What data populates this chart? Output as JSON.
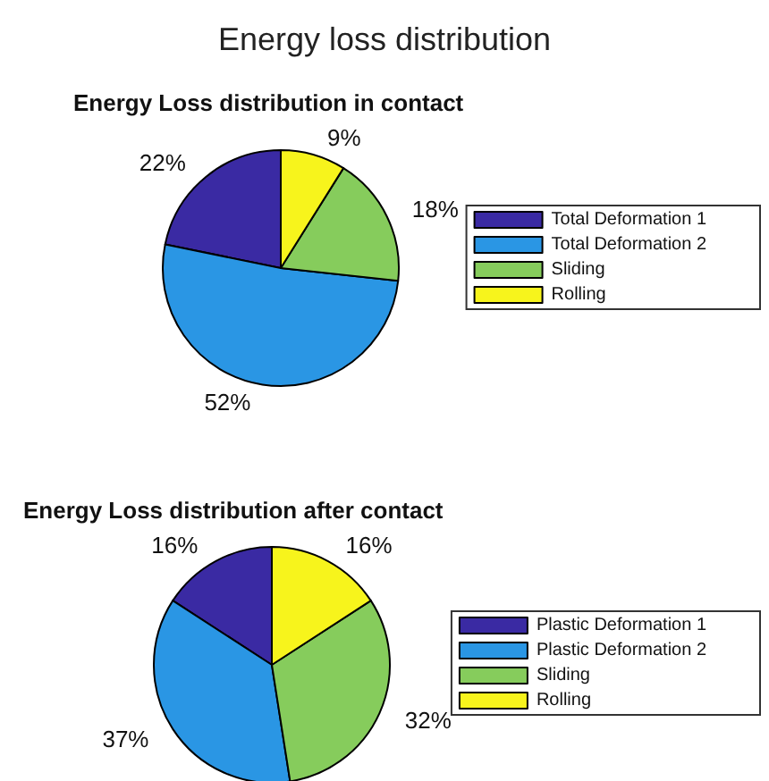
{
  "chart_data": [
    {
      "type": "pie",
      "title": "Energy loss distribution",
      "subtitle": "Energy Loss distribution in contact",
      "categories": [
        "Total Deformation 1",
        "Total Deformation 2",
        "Sliding",
        "Rolling"
      ],
      "values": [
        22,
        52,
        18,
        9
      ],
      "value_labels": [
        "22%",
        "52%",
        "18%",
        "9%"
      ],
      "colors": [
        "#3a2aa3",
        "#2a96e4",
        "#86cc5c",
        "#f7f41c"
      ],
      "legend": "right"
    },
    {
      "type": "pie",
      "title": "Energy Loss distribution after contact",
      "categories": [
        "Plastic Deformation 1",
        "Plastic Deformation 2",
        "Sliding",
        "Rolling"
      ],
      "values": [
        16,
        37,
        32,
        16
      ],
      "value_labels": [
        "16%",
        "37%",
        "32%",
        "16%"
      ],
      "colors": [
        "#3a2aa3",
        "#2a96e4",
        "#86cc5c",
        "#f7f41c"
      ],
      "legend": "right"
    }
  ]
}
